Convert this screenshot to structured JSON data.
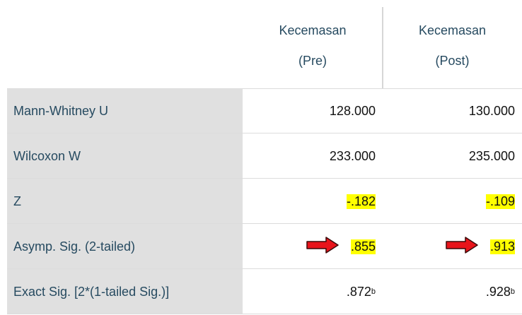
{
  "table": {
    "columns": [
      {
        "line1": "Kecemasan",
        "line2": "(Pre)"
      },
      {
        "line1": "Kecemasan",
        "line2": "(Post)"
      }
    ],
    "rows": [
      {
        "label": "Mann-Whitney U",
        "cells": [
          {
            "text": "128.000"
          },
          {
            "text": "130.000"
          }
        ]
      },
      {
        "label": "Wilcoxon W",
        "cells": [
          {
            "text": "233.000"
          },
          {
            "text": "235.000"
          }
        ]
      },
      {
        "label": "Z",
        "cells": [
          {
            "text": "-.182",
            "highlight": true
          },
          {
            "text": "-.109",
            "highlight": true
          }
        ]
      },
      {
        "label": "Asymp. Sig. (2-tailed)",
        "cells": [
          {
            "text": ".855",
            "highlight": true,
            "arrow": true
          },
          {
            "text": ".913",
            "highlight": true,
            "arrow": true
          }
        ]
      },
      {
        "label": "Exact Sig. [2*(1-tailed Sig.)]",
        "cells": [
          {
            "text": ".872",
            "footnote": "b"
          },
          {
            "text": ".928",
            "footnote": "b"
          }
        ]
      }
    ]
  }
}
